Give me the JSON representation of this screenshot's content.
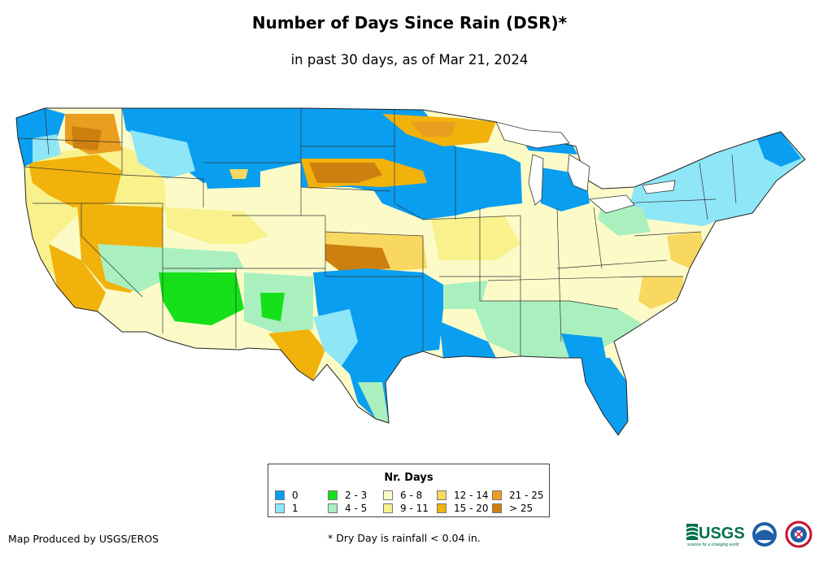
{
  "title": "Number of Days Since Rain (DSR)*",
  "subtitle": "in past 30 days, as of Mar 21, 2024",
  "legend": {
    "title": "Nr. Days",
    "items": [
      {
        "label": "0",
        "color": "#0a9ef0"
      },
      {
        "label": "1",
        "color": "#8ee6f7"
      },
      {
        "label": "2 - 3",
        "color": "#16e01a"
      },
      {
        "label": "4 - 5",
        "color": "#aaf0bf"
      },
      {
        "label": "6 - 8",
        "color": "#fcfbc8"
      },
      {
        "label": "9 - 11",
        "color": "#f8f18c"
      },
      {
        "label": "12 - 14",
        "color": "#f8d860"
      },
      {
        "label": "15 - 20",
        "color": "#f1b20c"
      },
      {
        "label": "21 - 25",
        "color": "#ea9e1f"
      },
      {
        "label": "> 25",
        "color": "#cd8010"
      }
    ]
  },
  "credit": "Map Produced by USGS/EROS",
  "footnote": "* Dry Day is rainfall < 0.04 in.",
  "logos": {
    "usgs": "USGS",
    "usgs_tagline": "science for a changing world"
  }
}
